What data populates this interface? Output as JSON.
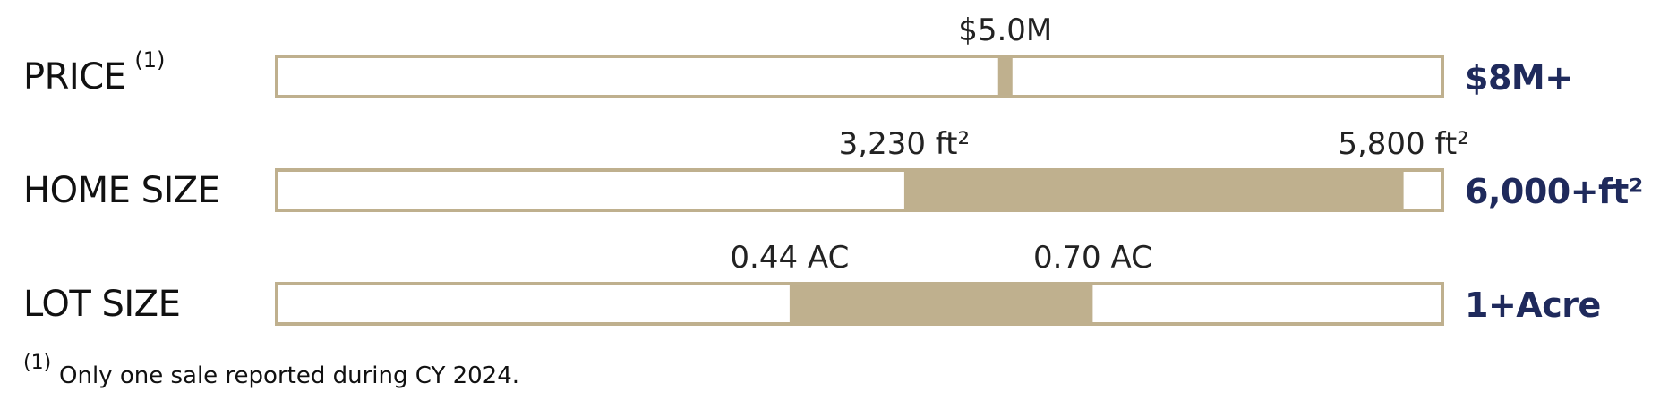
{
  "chart_data": {
    "type": "range_bar",
    "color": "#bfb08e",
    "end_color": "#1f2a5c",
    "rows": [
      {
        "name": "PRICE",
        "note": "(1)",
        "values": [
          5.0
        ],
        "value_labels": [
          "$5.0M"
        ],
        "xlim": [
          0,
          8
        ],
        "end_label": "$8M+"
      },
      {
        "name": "HOME SIZE",
        "values": [
          3230,
          5800
        ],
        "value_labels": [
          "3,230 ft²",
          "5,800 ft²"
        ],
        "xlim": [
          0,
          6000
        ],
        "end_label": "6,000+ft²"
      },
      {
        "name": "LOT SIZE",
        "values": [
          0.44,
          0.7
        ],
        "value_labels": [
          "0.44 AC",
          "0.70 AC"
        ],
        "xlim": [
          0,
          1
        ],
        "end_label": "1+Acre"
      }
    ],
    "footnote": {
      "marker": "(1)",
      "text": "Only one sale reported during CY 2024."
    }
  }
}
